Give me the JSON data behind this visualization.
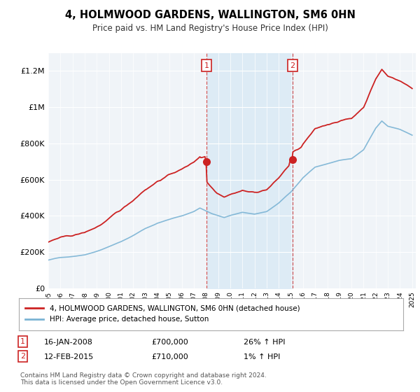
{
  "title": "4, HOLMWOOD GARDENS, WALLINGTON, SM6 0HN",
  "subtitle": "Price paid vs. HM Land Registry's House Price Index (HPI)",
  "hpi_label": "HPI: Average price, detached house, Sutton",
  "property_label": "4, HOLMWOOD GARDENS, WALLINGTON, SM6 0HN (detached house)",
  "sale1_label": "16-JAN-2008",
  "sale1_price": "£700,000",
  "sale1_hpi": "26% ↑ HPI",
  "sale1_year": 2008.04,
  "sale1_value": 700000,
  "sale2_label": "12-FEB-2015",
  "sale2_price": "£710,000",
  "sale2_hpi": "1% ↑ HPI",
  "sale2_year": 2015.12,
  "sale2_value": 710000,
  "footer": "Contains HM Land Registry data © Crown copyright and database right 2024.\nThis data is licensed under the Open Government Licence v3.0.",
  "bg_color": "#ffffff",
  "plot_bg_color": "#f0f4f8",
  "hpi_color": "#7ab3d4",
  "property_color": "#cc2222",
  "shading_color": "#d6e8f5",
  "ylim": [
    0,
    1300000
  ],
  "yticks": [
    0,
    200000,
    400000,
    600000,
    800000,
    1000000,
    1200000
  ],
  "ytick_labels": [
    "£0",
    "£200K",
    "£400K",
    "£600K",
    "£800K",
    "£1M",
    "£1.2M"
  ]
}
